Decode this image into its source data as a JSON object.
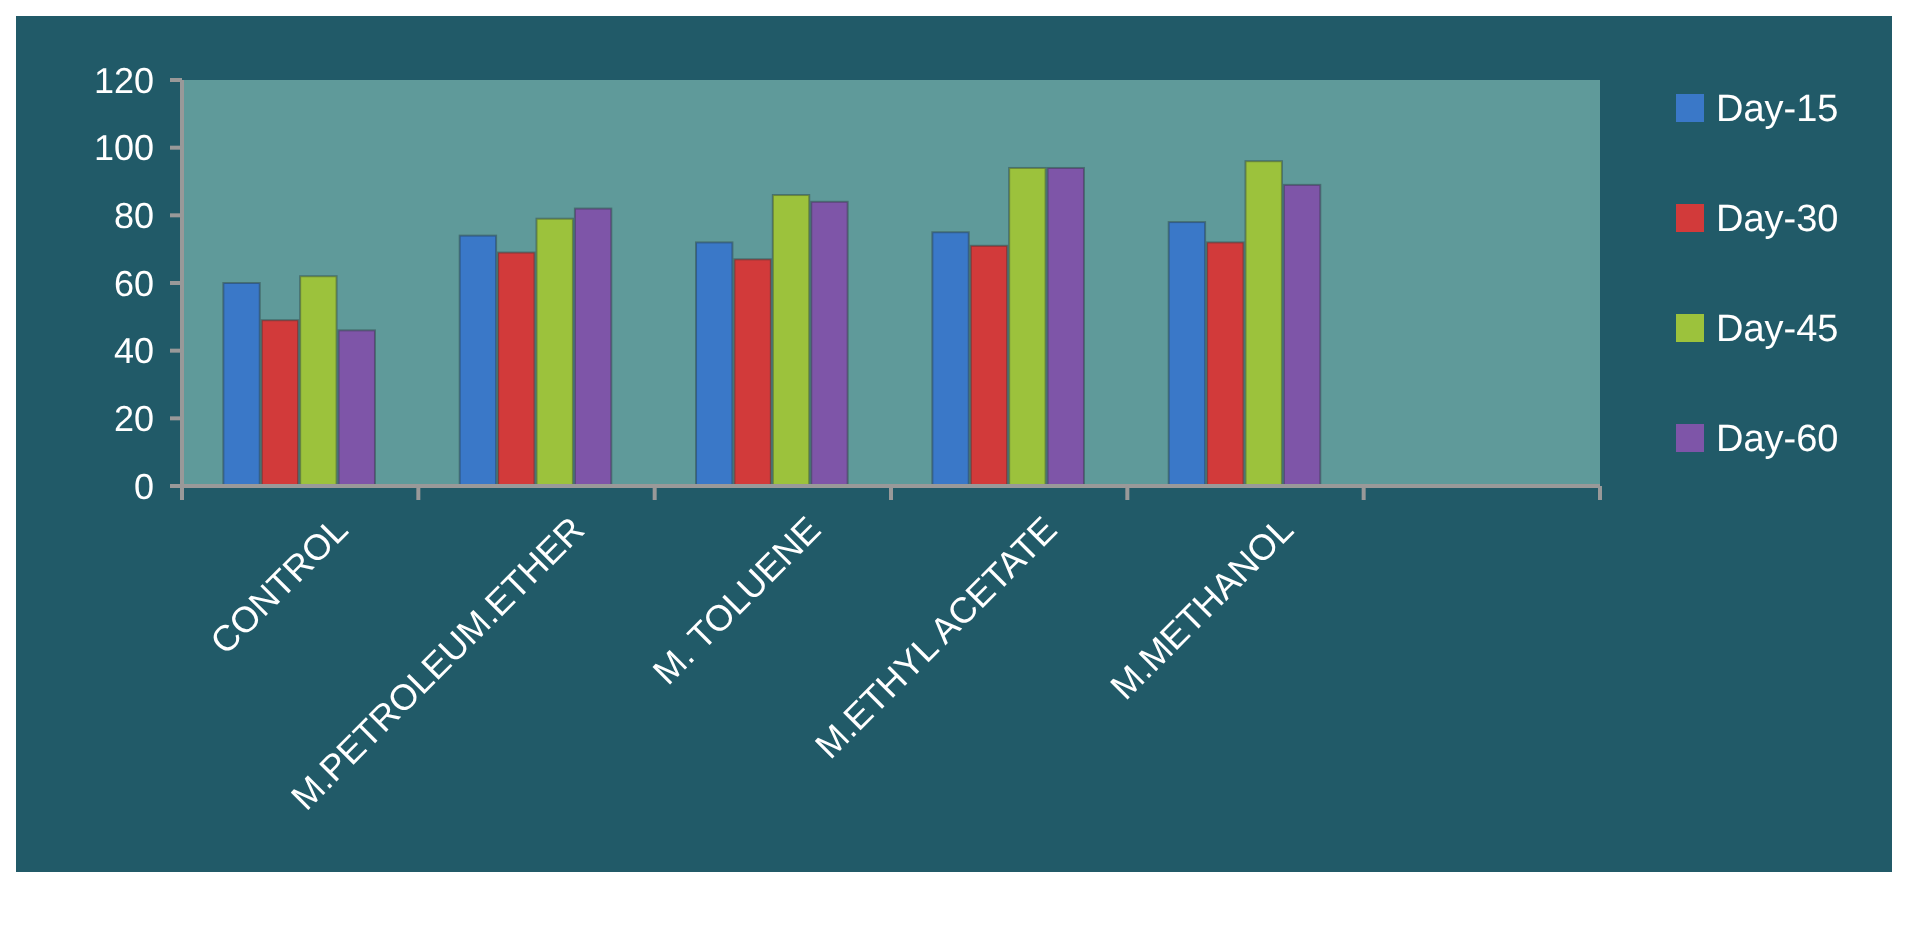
{
  "chart_data": {
    "type": "bar",
    "categories": [
      "CONTROL",
      "M.PETROLEUM.ETHER",
      "M. TOLUENE",
      "M.ETHYL ACETATE",
      "M.METHANOL",
      null
    ],
    "series": [
      {
        "name": "Day-15",
        "color": "#3a78c8",
        "values": [
          60,
          74,
          72,
          75,
          78,
          null
        ]
      },
      {
        "name": "Day-30",
        "color": "#d23a3a",
        "values": [
          49,
          69,
          67,
          71,
          72,
          null
        ]
      },
      {
        "name": "Day-45",
        "color": "#9cc23c",
        "values": [
          62,
          79,
          86,
          94,
          96,
          null
        ]
      },
      {
        "name": "Day-60",
        "color": "#7e55a8",
        "values": [
          46,
          82,
          84,
          94,
          89,
          null
        ]
      }
    ],
    "ylim": [
      0,
      120
    ],
    "yticks": [
      0,
      20,
      40,
      60,
      80,
      100,
      120
    ],
    "grid": false,
    "legend": "right"
  }
}
